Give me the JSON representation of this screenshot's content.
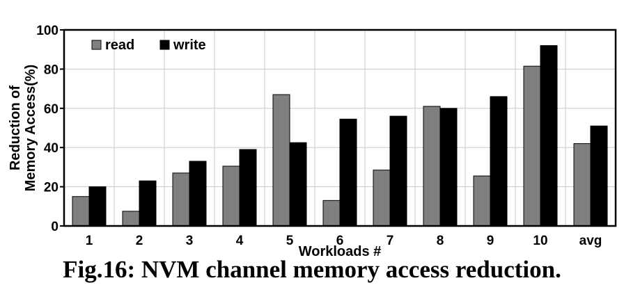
{
  "chart_data": {
    "type": "bar",
    "categories": [
      "1",
      "2",
      "3",
      "4",
      "5",
      "6",
      "7",
      "8",
      "9",
      "10",
      "avg"
    ],
    "series": [
      {
        "name": "read",
        "color": "#808080",
        "values": [
          15,
          7.5,
          27,
          30.5,
          67,
          13,
          28.5,
          61,
          25.5,
          81.5,
          42
        ]
      },
      {
        "name": "write",
        "color": "#000000",
        "values": [
          20,
          23,
          33,
          39,
          42.5,
          54.5,
          56,
          60,
          66,
          92,
          51
        ]
      }
    ],
    "xlabel": "Workloads #",
    "ylabel_lines": [
      "Reduction of",
      "Memory Access(%)"
    ],
    "ylim": [
      0,
      100
    ],
    "yticks": [
      0,
      20,
      40,
      60,
      80,
      100
    ],
    "grid": true,
    "legend_position": "top-left"
  },
  "caption": "Fig.16: NVM channel memory access reduction."
}
